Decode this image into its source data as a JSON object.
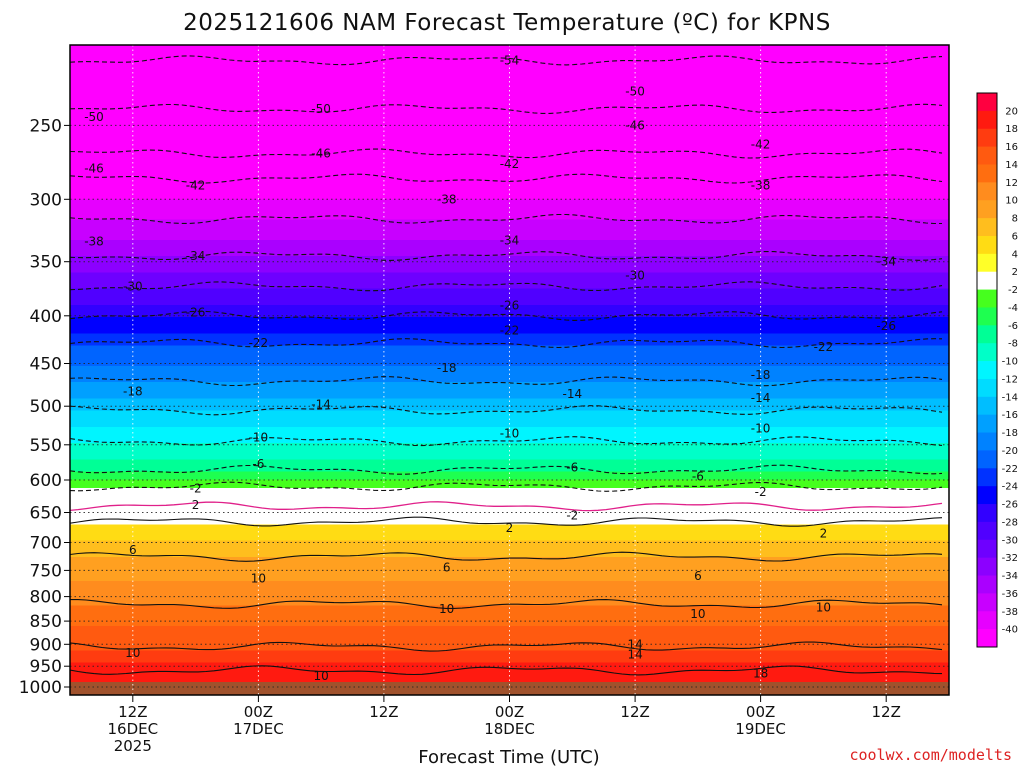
{
  "chart_data": {
    "type": "heatmap",
    "title": "2025121606 NAM Forecast Temperature (ºC) for KPNS",
    "xlabel": "Forecast Time (UTC)",
    "ylabel": "",
    "credit": "coolwx.com/modelts",
    "y_scale": "log-pressure",
    "y_axis_label_units": "hPa",
    "ylim": [
      1020,
      205
    ],
    "xlim": [
      "2025-12-16T06Z",
      "2025-12-19T18Z"
    ],
    "grid": true,
    "y_ticks": [
      250,
      300,
      350,
      400,
      450,
      500,
      550,
      600,
      650,
      700,
      750,
      800,
      850,
      900,
      950,
      1000
    ],
    "x_ticks": [
      {
        "time": "2025-12-16T12Z",
        "lines": [
          "12Z",
          "16DEC",
          "2025"
        ]
      },
      {
        "time": "2025-12-17T00Z",
        "lines": [
          "00Z",
          "17DEC"
        ]
      },
      {
        "time": "2025-12-17T12Z",
        "lines": [
          "12Z"
        ]
      },
      {
        "time": "2025-12-18T00Z",
        "lines": [
          "00Z",
          "18DEC"
        ]
      },
      {
        "time": "2025-12-18T12Z",
        "lines": [
          "12Z"
        ]
      },
      {
        "time": "2025-12-19T00Z",
        "lines": [
          "00Z",
          "19DEC"
        ]
      },
      {
        "time": "2025-12-19T12Z",
        "lines": [
          "12Z"
        ]
      }
    ],
    "colorbar": {
      "ticks": [
        "20",
        "18",
        "16",
        "14",
        "12",
        "10",
        "8",
        "6",
        "4",
        "2",
        "-2",
        "-4",
        "-6",
        "-8",
        "-10",
        "-12",
        "-14",
        "-16",
        "-18",
        "-20",
        "-22",
        "-24",
        "-26",
        "-28",
        "-30",
        "-32",
        "-34",
        "-36",
        "-38",
        "-40"
      ],
      "colors": [
        "#ff0040",
        "#ff1a10",
        "#ff3c10",
        "#ff5a10",
        "#ff6e10",
        "#ff8c1e",
        "#ffa020",
        "#ffbe1e",
        "#ffdc14",
        "#ffff28",
        "#ffffff",
        "#46ff1e",
        "#1eff50",
        "#00ff96",
        "#00ffc8",
        "#00f5ff",
        "#00dcff",
        "#00beff",
        "#00a0ff",
        "#0082ff",
        "#0064ff",
        "#0032ff",
        "#0000ff",
        "#3200ff",
        "#5000ff",
        "#6e00ff",
        "#8c00ff",
        "#aa00ff",
        "#c800ff",
        "#e600ff",
        "#ff00ff"
      ]
    },
    "isotherm_profile": [
      {
        "t": -54,
        "p": 213
      },
      {
        "t": -50,
        "p": 240
      },
      {
        "t": -46,
        "p": 268
      },
      {
        "t": -42,
        "p": 285
      },
      {
        "t": -38,
        "p": 315
      },
      {
        "t": -34,
        "p": 345
      },
      {
        "t": -30,
        "p": 372
      },
      {
        "t": -26,
        "p": 400
      },
      {
        "t": -22,
        "p": 428
      },
      {
        "t": -18,
        "p": 470
      },
      {
        "t": -14,
        "p": 505
      },
      {
        "t": -10,
        "p": 545
      },
      {
        "t": -6,
        "p": 585
      },
      {
        "t": -2,
        "p": 610
      },
      {
        "t": 0,
        "p": 640
      },
      {
        "t": 2,
        "p": 665
      },
      {
        "t": 6,
        "p": 725
      },
      {
        "t": 10,
        "p": 815
      },
      {
        "t": 14,
        "p": 905
      },
      {
        "t": 18,
        "p": 960
      },
      {
        "t": 20,
        "p": 1000
      }
    ],
    "contour_labels": [
      {
        "text": "-54",
        "time": "2025-12-18T00Z",
        "p": 213
      },
      {
        "text": "-50",
        "time": "2025-12-16T06Z",
        "p": 245
      },
      {
        "text": "-50",
        "time": "2025-12-17T06Z",
        "p": 240
      },
      {
        "text": "-50",
        "time": "2025-12-18T12Z",
        "p": 230
      },
      {
        "text": "-46",
        "time": "2025-12-16T06Z",
        "p": 278
      },
      {
        "text": "-46",
        "time": "2025-12-17T06Z",
        "p": 268
      },
      {
        "text": "-46",
        "time": "2025-12-18T12Z",
        "p": 250
      },
      {
        "text": "-42",
        "time": "2025-12-16T18Z",
        "p": 290
      },
      {
        "text": "-42",
        "time": "2025-12-18T00Z",
        "p": 275
      },
      {
        "text": "-42",
        "time": "2025-12-19T00Z",
        "p": 262
      },
      {
        "text": "-38",
        "time": "2025-12-16T06Z",
        "p": 333
      },
      {
        "text": "-38",
        "time": "2025-12-17T18Z",
        "p": 300
      },
      {
        "text": "-38",
        "time": "2025-12-19T00Z",
        "p": 290
      },
      {
        "text": "-34",
        "time": "2025-12-16T18Z",
        "p": 345
      },
      {
        "text": "-34",
        "time": "2025-12-18T00Z",
        "p": 332
      },
      {
        "text": "-34",
        "time": "2025-12-19T12Z",
        "p": 350
      },
      {
        "text": "-30",
        "time": "2025-12-16T12Z",
        "p": 372
      },
      {
        "text": "-30",
        "time": "2025-12-18T12Z",
        "p": 362
      },
      {
        "text": "-26",
        "time": "2025-12-16T18Z",
        "p": 397
      },
      {
        "text": "-26",
        "time": "2025-12-18T00Z",
        "p": 390
      },
      {
        "text": "-26",
        "time": "2025-12-19T12Z",
        "p": 410
      },
      {
        "text": "-22",
        "time": "2025-12-17T00Z",
        "p": 428
      },
      {
        "text": "-22",
        "time": "2025-12-18T00Z",
        "p": 415
      },
      {
        "text": "-22",
        "time": "2025-12-19T06Z",
        "p": 432
      },
      {
        "text": "-18",
        "time": "2025-12-16T12Z",
        "p": 482
      },
      {
        "text": "-18",
        "time": "2025-12-17T18Z",
        "p": 455
      },
      {
        "text": "-18",
        "time": "2025-12-19T00Z",
        "p": 463
      },
      {
        "text": "-14",
        "time": "2025-12-17T06Z",
        "p": 498
      },
      {
        "text": "-14",
        "time": "2025-12-18T06Z",
        "p": 485
      },
      {
        "text": "-14",
        "time": "2025-12-19T00Z",
        "p": 490
      },
      {
        "text": "-10",
        "time": "2025-12-17T00Z",
        "p": 540
      },
      {
        "text": "-10",
        "time": "2025-12-18T00Z",
        "p": 535
      },
      {
        "text": "-10",
        "time": "2025-12-19T00Z",
        "p": 528
      },
      {
        "text": "-6",
        "time": "2025-12-17T00Z",
        "p": 577
      },
      {
        "text": "-6",
        "time": "2025-12-18T06Z",
        "p": 582
      },
      {
        "text": "-6",
        "time": "2025-12-18T18Z",
        "p": 595
      },
      {
        "text": "-2",
        "time": "2025-12-16T18Z",
        "p": 613
      },
      {
        "text": "-2",
        "time": "2025-12-18T06Z",
        "p": 655
      },
      {
        "text": "-2",
        "time": "2025-12-19T00Z",
        "p": 618
      },
      {
        "text": "2",
        "time": "2025-12-16T18Z",
        "p": 638
      },
      {
        "text": "2",
        "time": "2025-12-18T00Z",
        "p": 675
      },
      {
        "text": "2",
        "time": "2025-12-19T06Z",
        "p": 685
      },
      {
        "text": "6",
        "time": "2025-12-16T12Z",
        "p": 713
      },
      {
        "text": "6",
        "time": "2025-12-17T18Z",
        "p": 745
      },
      {
        "text": "6",
        "time": "2025-12-18T18Z",
        "p": 760
      },
      {
        "text": "10",
        "time": "2025-12-17T00Z",
        "p": 765
      },
      {
        "text": "10",
        "time": "2025-12-16T12Z",
        "p": 920
      },
      {
        "text": "10",
        "time": "2025-12-17T18Z",
        "p": 825
      },
      {
        "text": "10",
        "time": "2025-12-18T18Z",
        "p": 835
      },
      {
        "text": "10",
        "time": "2025-12-19T06Z",
        "p": 822
      },
      {
        "text": "10",
        "time": "2025-12-17T06Z",
        "p": 973
      },
      {
        "text": "14",
        "time": "2025-12-18T12Z",
        "p": 900
      },
      {
        "text": "14",
        "time": "2025-12-18T12Z",
        "p": 923
      },
      {
        "text": "18",
        "time": "2025-12-19T00Z",
        "p": 967
      }
    ]
  }
}
